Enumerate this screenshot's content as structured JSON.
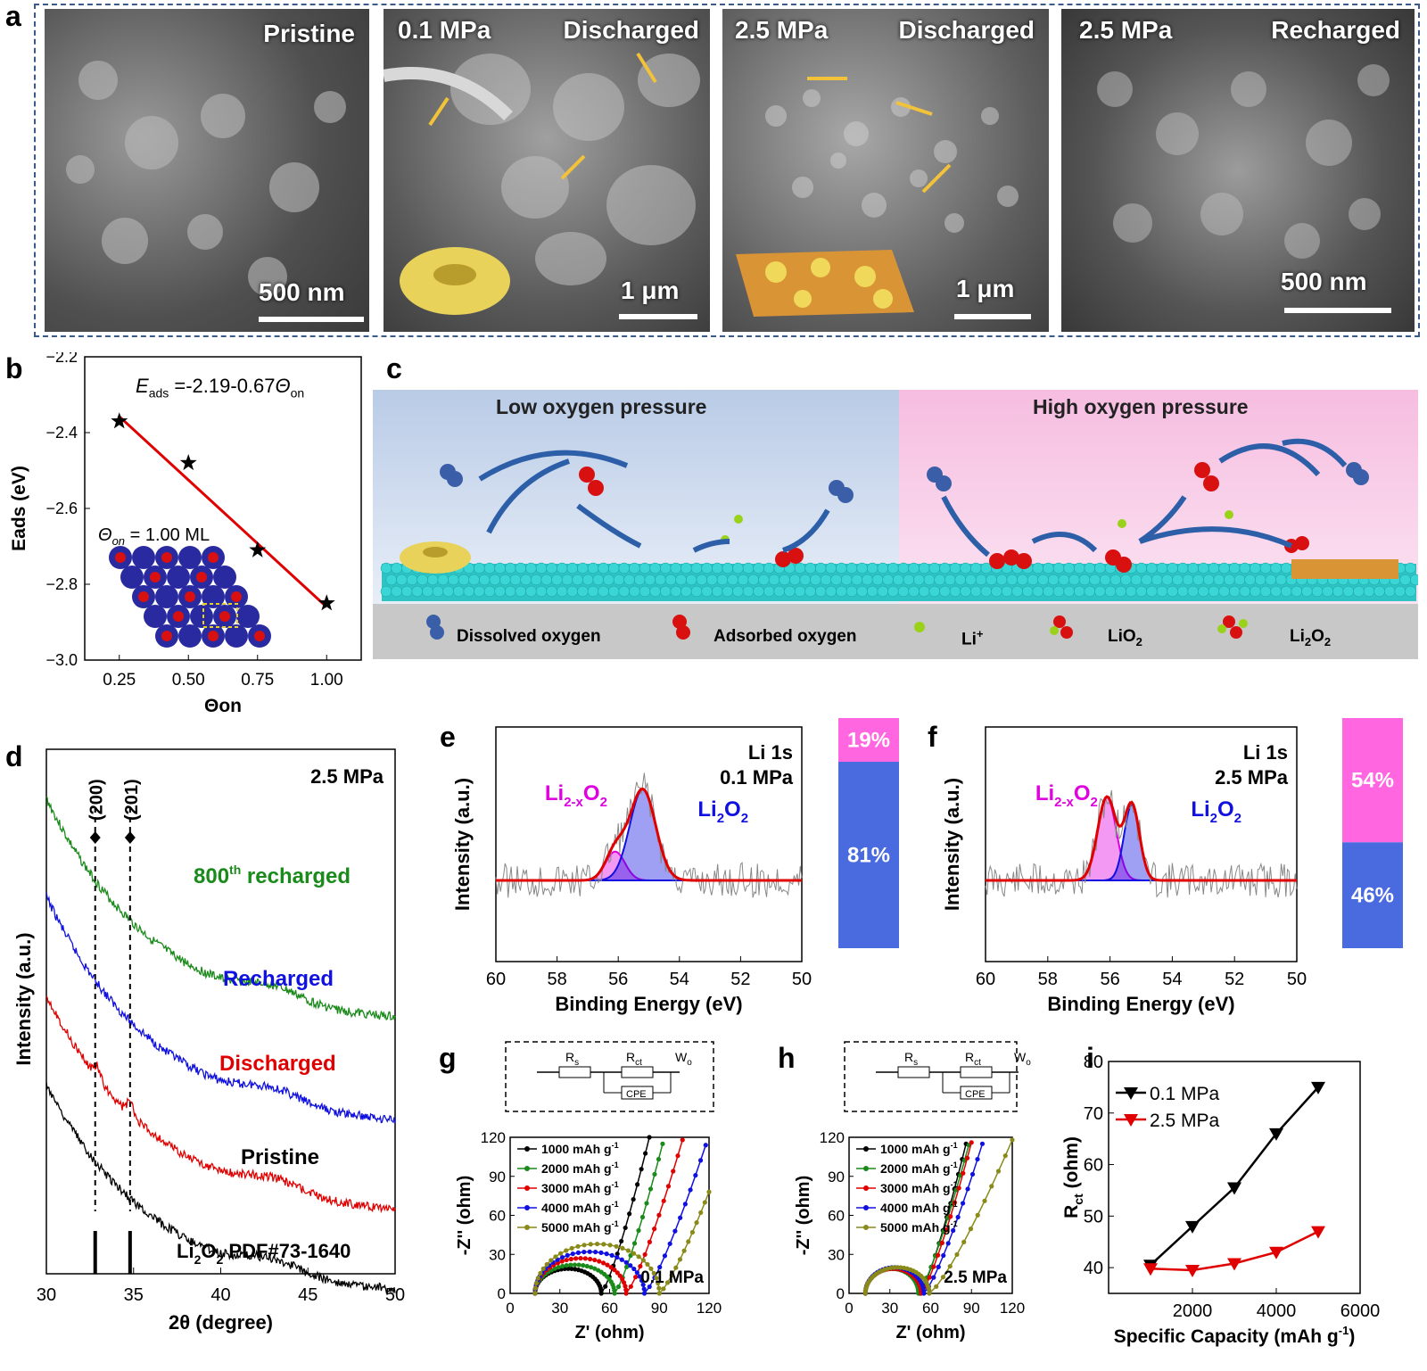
{
  "panel_a": {
    "letter": "a",
    "images": [
      {
        "label_left": "",
        "label_right": "Pristine",
        "scale": "500 nm"
      },
      {
        "label_left": "0.1 MPa",
        "label_right": "Discharged",
        "scale": "1 μm"
      },
      {
        "label_left": "2.5 MPa",
        "label_right": "Discharged",
        "scale": "1 μm"
      },
      {
        "label_left": "2.5 MPa",
        "label_right": "Recharged",
        "scale": "500 nm"
      }
    ]
  },
  "panel_b": {
    "letter": "b",
    "equation": "E_ads = -2.19-0.67Θ_on",
    "eq_parts": {
      "E": "E",
      "ads": "ads",
      "rest": " =-2.19-0.67",
      "theta": "Θ",
      "on": "on"
    },
    "coverage": "Θ",
    "coverage_sub": "on",
    "coverage_val": " = 1.00 ML",
    "chart_data": {
      "type": "scatter",
      "xlabel": "Θon",
      "ylabel": "Eads (eV)",
      "x": [
        0.25,
        0.5,
        0.75,
        1.0
      ],
      "y": [
        -2.37,
        -2.48,
        -2.71,
        -2.85
      ],
      "fit": {
        "slope": -0.67,
        "intercept": -2.19
      },
      "xlim": [
        0.125,
        1.125
      ],
      "ylim": [
        -3.0,
        -2.2
      ],
      "xticks": [
        "0.25",
        "0.50",
        "0.75",
        "1.00"
      ],
      "yticks": [
        "−2.2",
        "−2.4",
        "−2.6",
        "−2.8",
        "−3.0"
      ],
      "marker_color": "#000000",
      "fit_color": "#e00000"
    }
  },
  "panel_c": {
    "letter": "c",
    "low_title": "Low oxygen pressure",
    "high_title": "High oxygen pressure",
    "legend": {
      "dissolved": "Dissolved oxygen",
      "adsorbed": "Adsorbed oxygen",
      "li": "Li",
      "li_sup": "+",
      "lio2": "LiO",
      "lio2_sub": "2",
      "li2o2_a": "Li",
      "li2o2_b": "2",
      "li2o2_c": "O",
      "li2o2_d": "2"
    }
  },
  "panel_d": {
    "letter": "d",
    "pressure": "2.5 MPa",
    "peak1": "(200)",
    "peak2": "(201)",
    "labels": {
      "t800_a": "800",
      "t800_sup": "th",
      "t800_b": " recharged",
      "recharged": "Recharged",
      "discharged": "Discharged",
      "pristine": "Pristine",
      "pdf_a": "Li",
      "pdf_b": "2",
      "pdf_c": "O",
      "pdf_d": "2",
      "pdf_e": " PDF#73-1640"
    },
    "chart_data": {
      "type": "line",
      "xlabel": "2θ (degree)",
      "ylabel": "Intensity (a.u.)",
      "xlim": [
        30,
        50
      ],
      "xticks": [
        "30",
        "35",
        "40",
        "45",
        "50"
      ],
      "series": [
        {
          "name": "800th recharged",
          "color": "#1a8a1a",
          "start": 1.0,
          "end": 0.0,
          "bump": 0.12
        },
        {
          "name": "Recharged",
          "color": "#1010e0",
          "start": 1.0,
          "end": 0.0,
          "bump": 0.12
        },
        {
          "name": "Discharged",
          "color": "#e00000",
          "start": 1.0,
          "end": 0.0,
          "bump": 0.12,
          "peaks": [
            32.9,
            34.8
          ]
        },
        {
          "name": "Pristine",
          "color": "#000000",
          "start": 1.0,
          "end": 0.0,
          "bump": 0.12
        }
      ],
      "reference_peaks": [
        32.8,
        34.8
      ]
    }
  },
  "panel_e": {
    "letter": "e",
    "title1": "Li 1s",
    "title2": "0.1 MPa",
    "lab_magenta_a": "Li",
    "lab_magenta_b": "2-x",
    "lab_magenta_c": "O",
    "lab_magenta_d": "2",
    "lab_blue_a": "Li",
    "lab_blue_b": "2",
    "lab_blue_c": "O",
    "lab_blue_d": "2",
    "bar_top": "19%",
    "bar_bottom": "81%",
    "chart_data": {
      "type": "line",
      "xlabel": "Binding Energy (eV)",
      "ylabel": "Intensity (a.u.)",
      "xlim": [
        60,
        50
      ],
      "xticks": [
        "60",
        "58",
        "56",
        "54",
        "52",
        "50"
      ],
      "components": [
        {
          "name": "Li2-xO2",
          "center": 56.1,
          "height": 0.19,
          "width": 0.45,
          "color": "#e000e0"
        },
        {
          "name": "Li2O2",
          "center": 55.2,
          "height": 0.6,
          "width": 0.6,
          "color": "#1010e0"
        }
      ],
      "ratio": {
        "Li2-xO2": 19,
        "Li2O2": 81
      }
    }
  },
  "panel_f": {
    "letter": "f",
    "title1": "Li 1s",
    "title2": "2.5 MPa",
    "lab_magenta_a": "Li",
    "lab_magenta_b": "2-x",
    "lab_magenta_c": "O",
    "lab_magenta_d": "2",
    "lab_blue_a": "Li",
    "lab_blue_b": "2",
    "lab_blue_c": "O",
    "lab_blue_d": "2",
    "bar_top": "54%",
    "bar_bottom": "46%",
    "chart_data": {
      "type": "line",
      "xlabel": "Binding Energy (eV)",
      "ylabel": "Intensity (a.u.)",
      "xlim": [
        60,
        50
      ],
      "xticks": [
        "60",
        "58",
        "56",
        "54",
        "52",
        "50"
      ],
      "components": [
        {
          "name": "Li2-xO2",
          "center": 56.1,
          "height": 0.55,
          "width": 0.42,
          "color": "#e000e0"
        },
        {
          "name": "Li2O2",
          "center": 55.3,
          "height": 0.5,
          "width": 0.35,
          "color": "#1010e0"
        }
      ],
      "ratio": {
        "Li2-xO2": 54,
        "Li2O2": 46
      }
    }
  },
  "circuit": {
    "rs": "R",
    "rs_sub": "s",
    "rct": "R",
    "rct_sub": "ct",
    "wo": "W",
    "wo_sub": "o",
    "cpe": "CPE"
  },
  "panel_g": {
    "letter": "g",
    "pressure": "0.1 MPa",
    "chart_data": {
      "type": "line",
      "xlabel": "Z' (ohm)",
      "ylabel": "-Z'' (ohm)",
      "xlim": [
        0,
        120
      ],
      "ylim": [
        0,
        120
      ],
      "xticks": [
        "0",
        "30",
        "60",
        "90",
        "120"
      ],
      "yticks": [
        "0",
        "30",
        "60",
        "90",
        "120"
      ],
      "series": [
        {
          "name": "1000 mAh g",
          "color": "#000000",
          "rs": 15,
          "rct": 40,
          "zmax": 19,
          "tail_end": [
            84,
            120
          ]
        },
        {
          "name": "2000 mAh g",
          "color": "#1a8a1a",
          "rs": 15,
          "rct": 48,
          "zmax": 22,
          "tail_end": [
            92,
            115
          ]
        },
        {
          "name": "3000 mAh g",
          "color": "#e00000",
          "rs": 15,
          "rct": 55,
          "zmax": 27,
          "tail_end": [
            104,
            118
          ]
        },
        {
          "name": "4000 mAh g",
          "color": "#1010e0",
          "rs": 15,
          "rct": 66,
          "zmax": 32,
          "tail_end": [
            118,
            114
          ]
        },
        {
          "name": "5000 mAh g",
          "color": "#8a8a1a",
          "rs": 15,
          "rct": 75,
          "zmax": 38,
          "tail_end": [
            120,
            78
          ]
        }
      ],
      "legend_unit_sup": "-1"
    }
  },
  "panel_h": {
    "letter": "h",
    "pressure": "2.5 MPa",
    "chart_data": {
      "type": "line",
      "xlabel": "Z' (ohm)",
      "ylabel": "-Z'' (ohm)",
      "xlim": [
        0,
        120
      ],
      "ylim": [
        0,
        120
      ],
      "xticks": [
        "0",
        "30",
        "60",
        "90",
        "120"
      ],
      "yticks": [
        "0",
        "30",
        "60",
        "90",
        "120"
      ],
      "series": [
        {
          "name": "1000 mAh g",
          "color": "#000000",
          "rs": 12,
          "rct": 40,
          "zmax": 19,
          "tail_end": [
            86,
            115
          ]
        },
        {
          "name": "2000 mAh g",
          "color": "#1a8a1a",
          "rs": 12,
          "rct": 39,
          "zmax": 19,
          "tail_end": [
            88,
            114
          ]
        },
        {
          "name": "3000 mAh g",
          "color": "#e00000",
          "rs": 12,
          "rct": 41,
          "zmax": 19,
          "tail_end": [
            90,
            116
          ]
        },
        {
          "name": "4000 mAh g",
          "color": "#1010e0",
          "rs": 12,
          "rct": 43,
          "zmax": 20,
          "tail_end": [
            98,
            115
          ]
        },
        {
          "name": "5000 mAh g",
          "color": "#8a8a1a",
          "rs": 12,
          "rct": 47,
          "zmax": 20,
          "tail_end": [
            120,
            118
          ]
        }
      ],
      "legend_unit_sup": "-1"
    }
  },
  "panel_i": {
    "letter": "i",
    "chart_data": {
      "type": "line",
      "xlabel": "Specific Capacity (mAh g",
      "xlabel_sup": "-1",
      "xlabel_end": ")",
      "ylabel": "R",
      "ylabel_sub": "ct",
      "ylabel_end": " (ohm)",
      "xlim": [
        0,
        6000
      ],
      "ylim": [
        35,
        80
      ],
      "xticks": [
        "2000",
        "4000",
        "6000"
      ],
      "xtick_vals": [
        2000,
        4000,
        6000
      ],
      "yticks": [
        "40",
        "50",
        "60",
        "70",
        "80"
      ],
      "ytick_vals": [
        40,
        50,
        60,
        70,
        80
      ],
      "series": [
        {
          "name": "0.1 MPa",
          "color": "#000000",
          "x": [
            1000,
            2000,
            3000,
            4000,
            5000
          ],
          "y": [
            40.5,
            48,
            55.5,
            66,
            75
          ]
        },
        {
          "name": "2.5 MPa",
          "color": "#e00000",
          "x": [
            1000,
            2000,
            3000,
            4000,
            5000
          ],
          "y": [
            39.8,
            39.5,
            40.8,
            43,
            47
          ]
        }
      ]
    }
  }
}
